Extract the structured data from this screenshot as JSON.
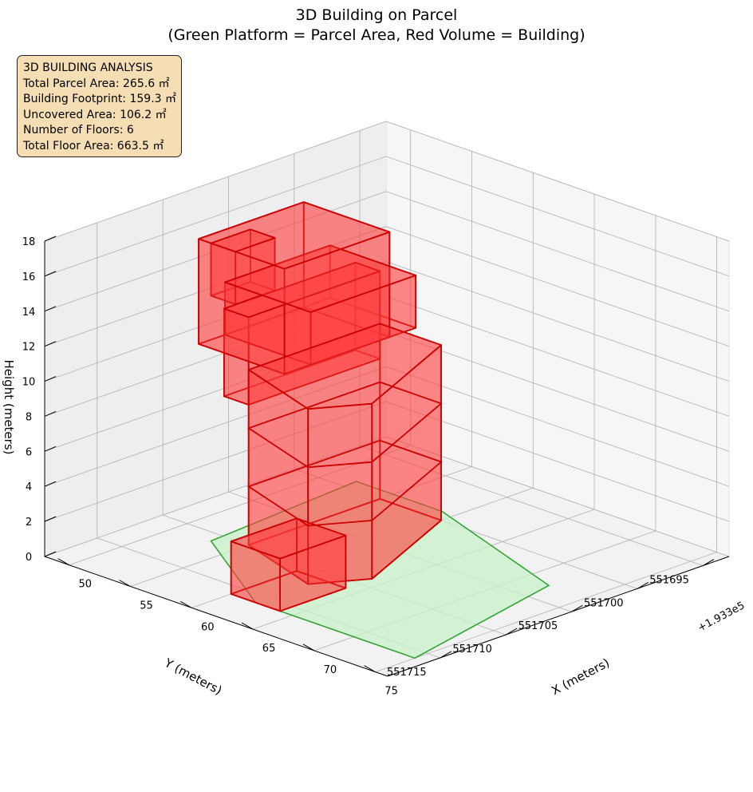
{
  "chart_data": {
    "type": "3d-polygons",
    "title": "3D Building on Parcel",
    "subtitle": "(Green Platform = Parcel Area, Red Volume = Building)",
    "xlabel": "X (meters)",
    "ylabel": "Y (meters)",
    "zlabel": "Height (meters)",
    "x_offset_label": "+1.933e5",
    "x_ticks": [
      "50",
      "55",
      "60",
      "65",
      "70",
      "75"
    ],
    "y_ticks": [
      "551695",
      "551700",
      "551705",
      "551710",
      "551715"
    ],
    "z_ticks": [
      "0",
      "2",
      "4",
      "6",
      "8",
      "10",
      "12",
      "14",
      "16",
      "18"
    ],
    "xlim": [
      193348,
      193376
    ],
    "ylim": [
      551693,
      551719
    ],
    "zlim": [
      0,
      18
    ],
    "grid": true,
    "colors": {
      "parcel_fill": "#c8f0c8",
      "parcel_edge": "#2ca02c",
      "building_fill": "#ff4040",
      "building_edge": "#cc0000"
    },
    "parcel": {
      "name": "Parcel Area",
      "polygon_xy": [
        [
          193352,
          551699
        ],
        [
          193353,
          551711
        ],
        [
          193362,
          551716
        ],
        [
          193375,
          551716
        ],
        [
          193372,
          551703
        ],
        [
          193359,
          551699
        ]
      ],
      "z": 0
    },
    "building": {
      "name": "Building",
      "floors": 6,
      "segments": [
        {
          "footprint": [
            [
              193355,
              551700
            ],
            [
              193355,
              551710
            ],
            [
              193362,
              551712
            ],
            [
              193364,
              551709
            ],
            [
              193360,
              551700
            ]
          ],
          "z": [
            0,
            10
          ]
        },
        {
          "footprint": [
            [
              193360,
              551711
            ],
            [
              193364,
              551711
            ],
            [
              193364,
              551716
            ],
            [
              193360,
              551716
            ]
          ],
          "z": [
            0,
            3
          ]
        },
        {
          "footprint": [
            [
              193353,
              551700
            ],
            [
              193355,
              551700
            ],
            [
              193355,
              551710
            ],
            [
              193353,
              551710
            ]
          ],
          "z": [
            8,
            13
          ]
        },
        {
          "footprint": [
            [
              193352,
              551701
            ],
            [
              193359,
              551701
            ],
            [
              193359,
              551709
            ],
            [
              193352,
              551709
            ]
          ],
          "z": [
            11,
            14
          ]
        },
        {
          "footprint": [
            [
              193352,
              551703
            ],
            [
              193359,
              551703
            ],
            [
              193359,
              551711
            ],
            [
              193352,
              551711
            ]
          ],
          "z": [
            11,
            17
          ]
        },
        {
          "footprint": [
            [
              193353,
              551708
            ],
            [
              193355,
              551708
            ],
            [
              193355,
              551711
            ],
            [
              193353,
              551711
            ]
          ],
          "z": [
            14,
            17
          ]
        }
      ]
    }
  },
  "info_box": {
    "title": "3D BUILDING ANALYSIS",
    "lines": [
      "Total Parcel Area: 265.6 ㎡",
      "Building Footprint: 159.3 ㎡",
      "Uncovered Area: 106.2 ㎡",
      "Number of Floors: 6",
      "Total Floor Area: 663.5 ㎡"
    ]
  }
}
